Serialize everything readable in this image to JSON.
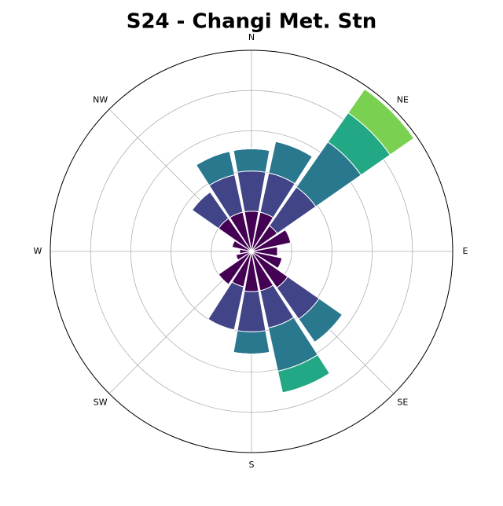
{
  "chart_data": {
    "type": "windrose",
    "title": "S24 - Changi Met. Stn",
    "categories": [
      "N",
      null,
      "NE",
      null,
      "E",
      null,
      "SE",
      null,
      "S",
      null,
      "SW",
      null,
      "W",
      null,
      "NW",
      null
    ],
    "series": [
      {
        "color": "#440154",
        "values": [
          1.0,
          1.0,
          0.78,
          1.0,
          0.65,
          0.78,
          1.1,
          1.0,
          1.0,
          0.9,
          1.0,
          0.4,
          0.3,
          0.5,
          1.0,
          1.0
        ]
      },
      {
        "color": "#414487",
        "values": [
          1.0,
          1.0,
          1.17,
          0,
          0,
          0,
          0.95,
          0.95,
          1.0,
          1.1,
          0,
          0,
          0,
          0,
          0.8,
          0.95
        ]
      },
      {
        "color": "#2a788e",
        "values": [
          0.55,
          0.8,
          1.37,
          0,
          0,
          0,
          0.7,
          1.1,
          0.55,
          0,
          0,
          0,
          0,
          0,
          0,
          0.6
        ]
      },
      {
        "color": "#22a884",
        "values": [
          0,
          0,
          0.88,
          0,
          0,
          0,
          0,
          0.55,
          0,
          0,
          0,
          0,
          0,
          0,
          0,
          0
        ]
      },
      {
        "color": "#7ad151",
        "values": [
          0,
          0,
          0.72,
          0,
          0,
          0,
          0,
          0,
          0,
          0,
          0,
          0,
          0,
          0,
          0,
          0
        ]
      }
    ],
    "ylim": [
      0,
      5
    ],
    "yticks": [
      1,
      2,
      3,
      4,
      5
    ],
    "grid": true
  }
}
